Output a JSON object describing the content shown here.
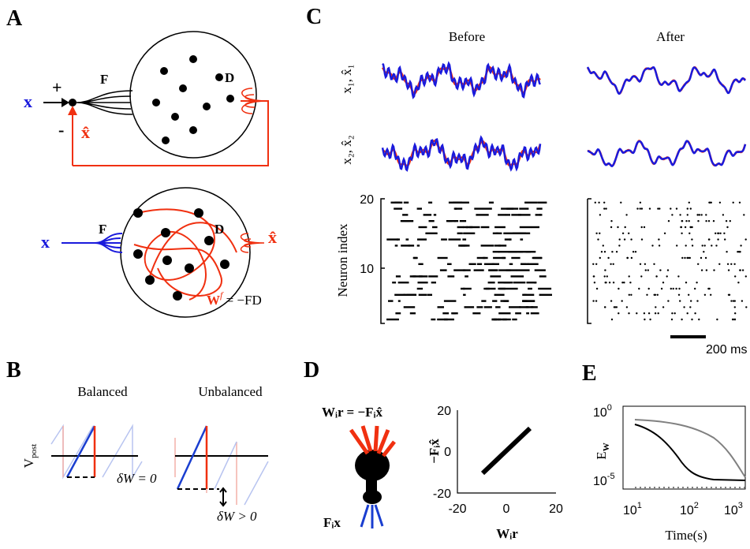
{
  "panels": {
    "A": {
      "label": "A",
      "top": {
        "input": "x",
        "plus": "+",
        "minus": "-",
        "feedback": "x̂",
        "F": "F",
        "D": "D"
      },
      "bottom": {
        "input": "x",
        "F": "F",
        "D": "D",
        "output": "x̂",
        "equation": {
          "base": "W",
          "sup": "f",
          "rest": " = −FD"
        }
      }
    },
    "B": {
      "label": "B",
      "balanced": "Balanced",
      "unbalanced": "Unbalanced",
      "ylabel": {
        "base": "V",
        "sub": "post"
      },
      "dw_zero": "δW = 0",
      "dw_pos": "δW > 0"
    },
    "C": {
      "label": "C",
      "before": "Before",
      "after": "After",
      "trace1_label": "x₁, x̂₁",
      "trace2_label": "x₂, x̂₂",
      "raster_ylabel": "Neuron index",
      "yticks": [
        "20",
        "10"
      ],
      "scalebar": "200 ms"
    },
    "D": {
      "label": "D",
      "equation": "Wᵢr = −Fᵢx̂",
      "input": "Fᵢx",
      "ylabel": "−Fᵢx̂",
      "xlabel": "Wᵢr",
      "xticks": [
        "-20",
        "0",
        "20"
      ],
      "yticks": [
        "20",
        "0",
        "-20"
      ]
    },
    "E": {
      "label": "E",
      "ylabel": {
        "base": "E",
        "sub": "W"
      },
      "yticks": [
        {
          "base": "10",
          "exp": "0"
        },
        {
          "base": "10",
          "exp": "-5"
        }
      ],
      "xticks": [
        {
          "base": "10",
          "exp": "1"
        },
        {
          "base": "10",
          "exp": "2"
        },
        {
          "base": "10",
          "exp": "3"
        }
      ],
      "xlabel": "Time(s)"
    }
  }
}
